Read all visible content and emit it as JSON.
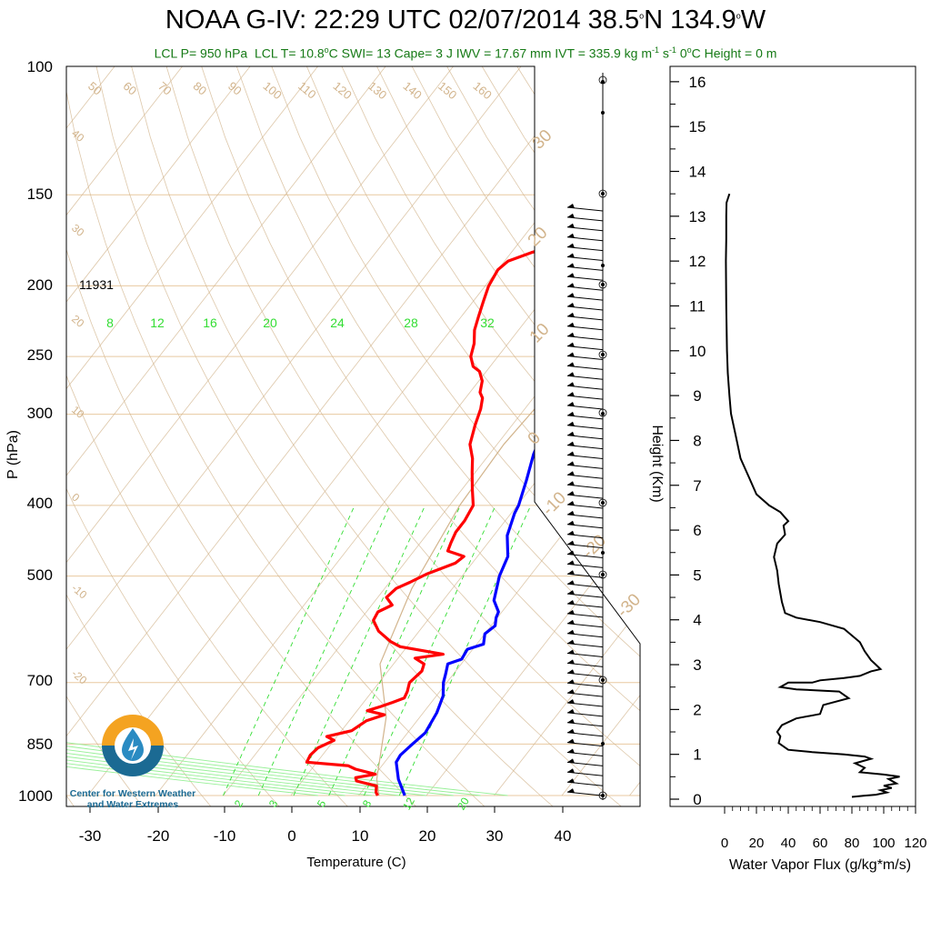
{
  "header": {
    "title_prefix": "NOAA G-IV: 22:29 UTC 02/07/2014  38.5",
    "title_lat_unit": "o",
    "title_mid": "N 134.9",
    "title_lon_unit": "o",
    "title_suffix": "W",
    "stats": {
      "lcl_p": "LCL P= 950 hPa",
      "lcl_t_a": "LCL T= 10.8",
      "lcl_t_deg": "o",
      "lcl_t_b": "C  SWI= 13  Cape= 3 J  IWV = 17.67 mm  IVT = 335.9 kg m",
      "ivt_exp1": "-1",
      "ivt_s": " s",
      "ivt_exp2": "-1",
      "zero_a": "  0",
      "zero_deg": "o",
      "zero_b": "C Height = 0 m"
    }
  },
  "logo": {
    "line1": "Center for Western Weather",
    "line2": "and Water Extremes"
  },
  "colors": {
    "temperature": "#0000ff",
    "dewpoint": "#ff0000",
    "dry_adiabat": "#d2b48c",
    "mixing_ratio": "#33dd33",
    "moist_adiabat": "#98f098",
    "isobar": "#e8c9a0",
    "vapor_flux": "#000000",
    "subtitle": "#167a16"
  },
  "chart_data": [
    {
      "type": "line",
      "title": "",
      "xlabel": "Temperature (C)",
      "ylabel": "P (hPa)",
      "x_ticks": [
        "-30",
        "-20",
        "-10",
        "0",
        "10",
        "20",
        "30",
        "40"
      ],
      "y_ticks": [
        "100",
        "150",
        "200",
        "250",
        "300",
        "400",
        "500",
        "700",
        "850",
        "1000"
      ],
      "xlim": [
        -35,
        53
      ],
      "ylim": [
        1000,
        100
      ],
      "annotation_tropopause": "11931",
      "mixing_ratio_labels_top": [
        "8",
        "12",
        "16",
        "20",
        "24",
        "28",
        "32"
      ],
      "mixing_ratio_labels_bottom": [
        "2",
        "3",
        "5",
        "8",
        "12",
        "20"
      ],
      "isotherm_labels": [
        "50",
        "60",
        "70",
        "80",
        "90",
        "100",
        "110",
        "120",
        "130",
        "140",
        "150",
        "160",
        "40",
        "30",
        "20",
        "10",
        "0",
        "-10",
        "-20"
      ],
      "dry_adiabat_labels": [
        "30",
        "20",
        "10",
        "0",
        "-10",
        "-20",
        "-30"
      ],
      "series": [
        {
          "name": "Temperature",
          "points": [
            [
              16.8,
              1000
            ],
            [
              14,
              950
            ],
            [
              11.7,
              900
            ],
            [
              11.5,
              880
            ],
            [
              12,
              850
            ],
            [
              12.6,
              820
            ],
            [
              12,
              770
            ],
            [
              11,
              730
            ],
            [
              9.5,
              700
            ],
            [
              8.8,
              680
            ],
            [
              8,
              660
            ],
            [
              9.5,
              650
            ],
            [
              9.2,
              630
            ],
            [
              11,
              620
            ],
            [
              10,
              600
            ],
            [
              10.6,
              585
            ],
            [
              9.8,
              570
            ],
            [
              9.5,
              560
            ],
            [
              7.5,
              540
            ],
            [
              5.5,
              500
            ],
            [
              4.5,
              470
            ],
            [
              2,
              440
            ],
            [
              0.5,
              410
            ],
            [
              0.2,
              400
            ],
            [
              -1.5,
              370
            ],
            [
              -3.5,
              340
            ],
            [
              -5,
              310
            ],
            [
              -6,
              290
            ],
            [
              -7.5,
              265
            ],
            [
              -9,
              245
            ],
            [
              -10,
              230
            ],
            [
              -10.5,
              220
            ],
            [
              -12,
              205
            ],
            [
              -12.3,
              200
            ],
            [
              -11.3,
              193
            ],
            [
              -9,
              187
            ],
            [
              -7,
              183
            ],
            [
              -3,
              175
            ],
            [
              0,
              168
            ],
            [
              3,
              163
            ],
            [
              10,
              158
            ],
            [
              18,
              155
            ],
            [
              22.5,
              153
            ]
          ]
        },
        {
          "name": "Dewpoint",
          "points": [
            [
              12.8,
              1000
            ],
            [
              12.2,
              990
            ],
            [
              11.5,
              970
            ],
            [
              8,
              955
            ],
            [
              7.5,
              945
            ],
            [
              10,
              935
            ],
            [
              6.5,
              920
            ],
            [
              5,
              910
            ],
            [
              -1.5,
              900
            ],
            [
              -1.8,
              880
            ],
            [
              -1.5,
              860
            ],
            [
              0,
              840
            ],
            [
              -1.5,
              830
            ],
            [
              1.5,
              815
            ],
            [
              2.5,
              790
            ],
            [
              4.5,
              775
            ],
            [
              1.5,
              765
            ],
            [
              3,
              755
            ],
            [
              4.3,
              745
            ],
            [
              5.5,
              735
            ],
            [
              5.2,
              720
            ],
            [
              4.5,
              700
            ],
            [
              5,
              675
            ],
            [
              4.5,
              660
            ],
            [
              2.5,
              648
            ],
            [
              6.2,
              640
            ],
            [
              -1,
              625
            ],
            [
              -3,
              615
            ],
            [
              -6,
              595
            ],
            [
              -8,
              575
            ],
            [
              -8.3,
              560
            ],
            [
              -7,
              548
            ],
            [
              -8.7,
              535
            ],
            [
              -8.3,
              520
            ],
            [
              -7,
              510
            ],
            [
              -5.5,
              497
            ],
            [
              -2.5,
              480
            ],
            [
              -2,
              470
            ],
            [
              -5,
              462
            ],
            [
              -5.5,
              450
            ],
            [
              -6,
              435
            ],
            [
              -6,
              420
            ],
            [
              -6.5,
              400
            ],
            [
              -8.5,
              380
            ],
            [
              -10.5,
              360
            ],
            [
              -12,
              345
            ],
            [
              -14,
              330
            ],
            [
              -15.5,
              310
            ],
            [
              -16.5,
              295
            ],
            [
              -17.5,
              285
            ],
            [
              -18.5,
              280
            ],
            [
              -19.5,
              270
            ],
            [
              -21,
              262
            ],
            [
              -22.5,
              258
            ],
            [
              -24,
              250
            ],
            [
              -25,
              240
            ],
            [
              -26.5,
              230
            ],
            [
              -27.5,
              220
            ],
            [
              -28.5,
              210
            ],
            [
              -29.5,
              200
            ],
            [
              -30,
              190
            ],
            [
              -29.5,
              185
            ],
            [
              -27,
              180
            ],
            [
              -24,
              176
            ],
            [
              -21.5,
              172
            ],
            [
              -20.5,
              168
            ],
            [
              -20,
              163
            ],
            [
              -17,
              158
            ],
            [
              -10,
              156
            ],
            [
              -4,
              154
            ],
            [
              3,
              153
            ]
          ]
        },
        {
          "name": "Parcel",
          "points": [
            [
              13,
              1000
            ],
            [
              10.8,
              950
            ],
            [
              5,
              780
            ],
            [
              -2,
              660
            ],
            [
              -6,
              520
            ],
            [
              -8.5,
              400
            ],
            [
              -9,
              330
            ],
            [
              -8,
              260
            ],
            [
              -6,
              215
            ],
            [
              -3,
              180
            ],
            [
              1,
              150
            ],
            [
              6,
              120
            ],
            [
              10,
              100
            ]
          ]
        }
      ]
    },
    {
      "type": "line",
      "title": "",
      "xlabel": "Water Vapor Flux (g/kg*m/s)",
      "ylabel": "Height (Km)",
      "x_ticks": [
        "0",
        "20",
        "40",
        "60",
        "80",
        "100",
        "120"
      ],
      "y_ticks": [
        "0",
        "1",
        "2",
        "3",
        "4",
        "5",
        "6",
        "7",
        "8",
        "9",
        "10",
        "11",
        "12",
        "13",
        "14",
        "15",
        "16"
      ],
      "xlim": [
        0,
        120
      ],
      "ylim": [
        0,
        16.4
      ],
      "series": [
        {
          "name": "Water Vapor Flux",
          "points": [
            [
              80,
              0.05
            ],
            [
              88,
              0.08
            ],
            [
              95,
              0.1
            ],
            [
              102,
              0.15
            ],
            [
              98,
              0.2
            ],
            [
              105,
              0.25
            ],
            [
              100,
              0.3
            ],
            [
              108,
              0.35
            ],
            [
              103,
              0.45
            ],
            [
              110,
              0.5
            ],
            [
              100,
              0.55
            ],
            [
              85,
              0.6
            ],
            [
              88,
              0.7
            ],
            [
              82,
              0.8
            ],
            [
              92,
              0.9
            ],
            [
              88,
              0.95
            ],
            [
              75,
              1.0
            ],
            [
              55,
              1.05
            ],
            [
              40,
              1.1
            ],
            [
              34,
              1.25
            ],
            [
              35,
              1.4
            ],
            [
              33,
              1.5
            ],
            [
              36,
              1.65
            ],
            [
              45,
              1.8
            ],
            [
              60,
              1.9
            ],
            [
              62,
              2.1
            ],
            [
              78,
              2.25
            ],
            [
              72,
              2.4
            ],
            [
              45,
              2.45
            ],
            [
              35,
              2.5
            ],
            [
              40,
              2.6
            ],
            [
              55,
              2.6
            ],
            [
              60,
              2.65
            ],
            [
              75,
              2.7
            ],
            [
              85,
              2.75
            ],
            [
              92,
              2.85
            ],
            [
              98,
              2.9
            ],
            [
              95,
              3.0
            ],
            [
              92,
              3.1
            ],
            [
              88,
              3.3
            ],
            [
              85,
              3.5
            ],
            [
              75,
              3.8
            ],
            [
              60,
              3.95
            ],
            [
              45,
              4.05
            ],
            [
              38,
              4.15
            ],
            [
              36,
              4.4
            ],
            [
              34,
              4.8
            ],
            [
              33,
              5.1
            ],
            [
              31,
              5.4
            ],
            [
              33,
              5.7
            ],
            [
              38,
              5.9
            ],
            [
              37,
              6.1
            ],
            [
              40,
              6.2
            ],
            [
              35,
              6.4
            ],
            [
              28,
              6.55
            ],
            [
              20,
              6.8
            ],
            [
              15,
              7.2
            ],
            [
              10,
              7.6
            ],
            [
              7,
              8.1
            ],
            [
              4,
              8.6
            ],
            [
              3,
              9.0
            ],
            [
              2,
              9.5
            ],
            [
              1.5,
              10
            ],
            [
              1,
              11
            ],
            [
              0.8,
              12
            ],
            [
              1,
              12.5
            ],
            [
              1,
              13
            ],
            [
              1.2,
              13.3
            ],
            [
              3,
              13.5
            ]
          ]
        }
      ]
    }
  ]
}
